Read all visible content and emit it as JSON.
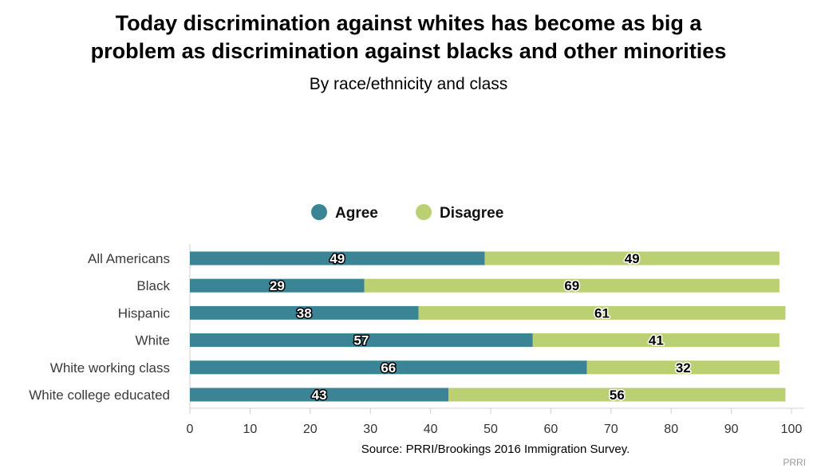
{
  "title_line1": "Today discrimination against whites has become as big a",
  "title_line2": "problem as discrimination against blacks and other minorities",
  "subtitle": "By race/ethnicity and class",
  "source": "Source: PRRI/Brookings 2016 Immigration Survey.",
  "credit": "PRRI",
  "colors": {
    "agree": "#3a8496",
    "disagree": "#bad072"
  },
  "chart_data": {
    "type": "bar",
    "orientation": "horizontal",
    "stacked": true,
    "categories": [
      "All Americans",
      "Black",
      "Hispanic",
      "White",
      "White working class",
      "White college educated"
    ],
    "series": [
      {
        "name": "Agree",
        "values": [
          49,
          29,
          38,
          57,
          66,
          43
        ]
      },
      {
        "name": "Disagree",
        "values": [
          49,
          69,
          61,
          41,
          32,
          56
        ]
      }
    ],
    "xlim": [
      0,
      100
    ],
    "xticks": [
      0,
      10,
      20,
      30,
      40,
      50,
      60,
      70,
      80,
      90,
      100
    ],
    "legend_position": "top-center",
    "grid": false
  }
}
